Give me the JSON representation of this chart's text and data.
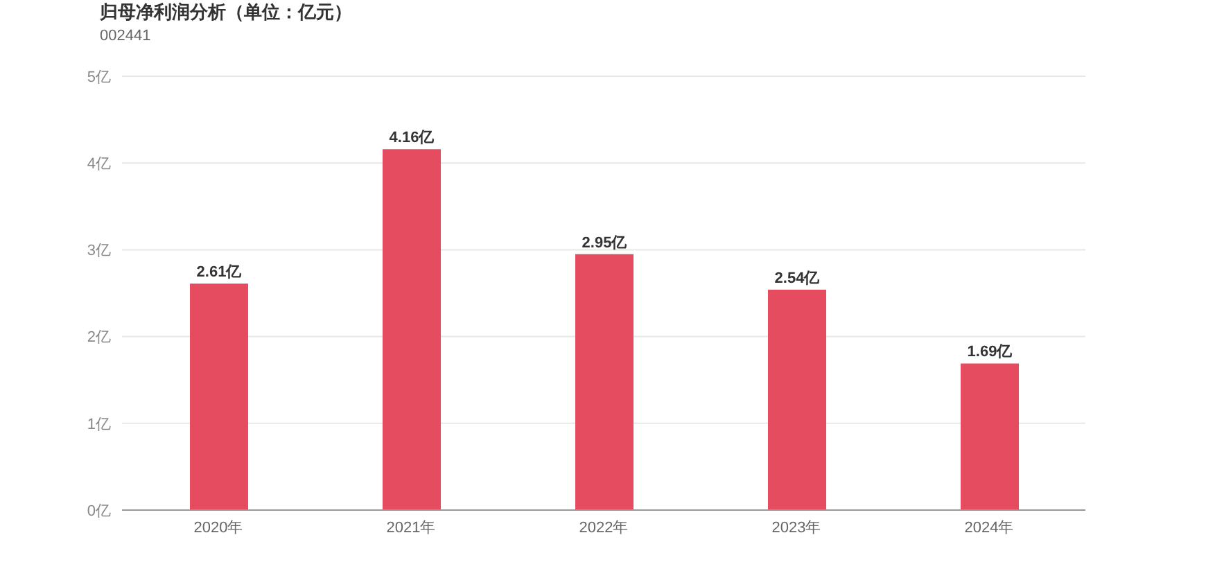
{
  "chart_data": {
    "type": "bar",
    "title": "归母净利润分析（单位：亿元）",
    "subtitle": "002441",
    "categories": [
      "2020年",
      "2021年",
      "2022年",
      "2023年",
      "2024年"
    ],
    "values": [
      2.61,
      4.16,
      2.95,
      2.54,
      1.69
    ],
    "value_labels": [
      "2.61亿",
      "4.16亿",
      "2.95亿",
      "2.54亿",
      "1.69亿"
    ],
    "color": "#e64c5f",
    "ylim": [
      0,
      5
    ],
    "yticks": [
      {
        "value": 0,
        "label": "0亿"
      },
      {
        "value": 1,
        "label": "1亿"
      },
      {
        "value": 2,
        "label": "2亿"
      },
      {
        "value": 3,
        "label": "3亿"
      },
      {
        "value": 4,
        "label": "4亿"
      },
      {
        "value": 5,
        "label": "5亿"
      }
    ],
    "grid": "y",
    "legend": false
  }
}
